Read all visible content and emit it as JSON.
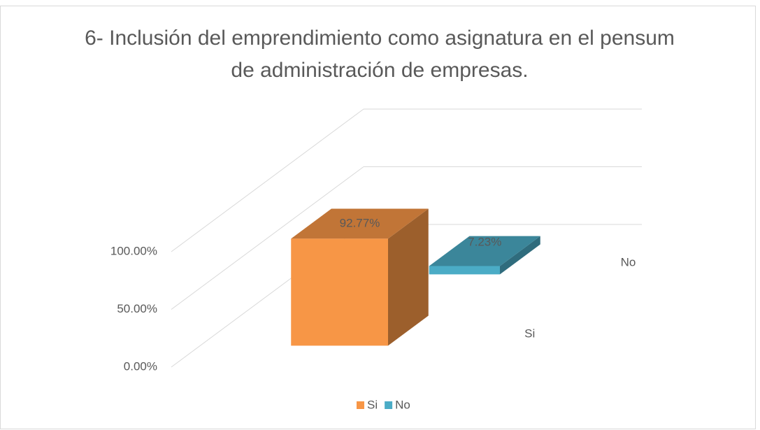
{
  "chart_data": {
    "type": "bar3d",
    "title": "6- Inclusión del emprendimiento como asignatura en el pensum de administración de empresas.",
    "categories": [
      null
    ],
    "series": [
      {
        "name": "Si",
        "color": "#f79646",
        "values": [
          92.77
        ],
        "value_labels": [
          "92.77%"
        ]
      },
      {
        "name": "No",
        "color": "#4bacc6",
        "values": [
          7.23
        ],
        "value_labels": [
          "7.23%"
        ]
      }
    ],
    "ylim": [
      0,
      100
    ],
    "yticks": [
      {
        "value": 0,
        "label": "0.00%"
      },
      {
        "value": 50,
        "label": "50.00%"
      },
      {
        "value": 100,
        "label": "100.00%"
      }
    ],
    "grid": true,
    "legend": "bottom"
  }
}
